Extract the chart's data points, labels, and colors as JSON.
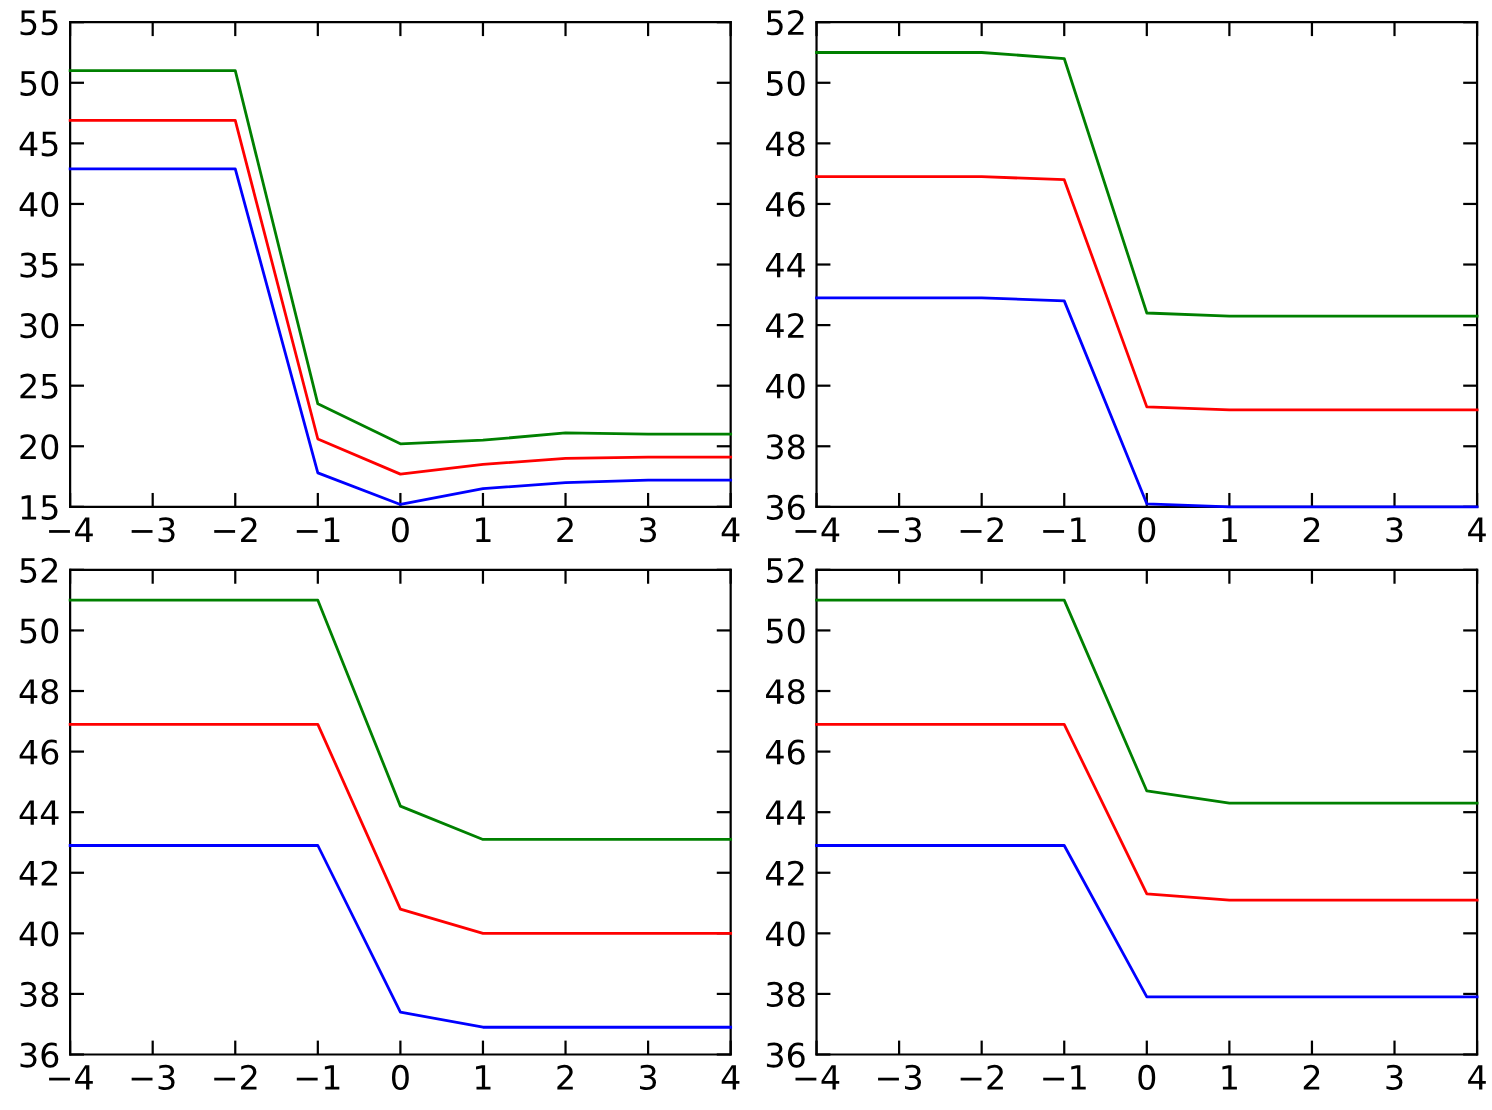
{
  "chart_data": [
    {
      "type": "line",
      "x": [
        -4,
        -2,
        -1,
        0,
        1,
        2,
        3,
        4
      ],
      "xlim": [
        -4,
        4
      ],
      "xticks": [
        -4,
        -3,
        -2,
        -1,
        0,
        1,
        2,
        3,
        4
      ],
      "ylim": [
        15,
        55
      ],
      "yticks": [
        15,
        20,
        25,
        30,
        35,
        40,
        45,
        50,
        55
      ],
      "grid": false,
      "series": [
        {
          "color": "#008000",
          "values": [
            51,
            51,
            23.5,
            20.2,
            20.5,
            21.1,
            21,
            21
          ]
        },
        {
          "color": "#ff0000",
          "values": [
            46.9,
            46.9,
            20.6,
            17.7,
            18.5,
            19,
            19.1,
            19.1
          ]
        },
        {
          "color": "#0000ff",
          "values": [
            42.9,
            42.9,
            17.8,
            15.2,
            16.5,
            17,
            17.2,
            17.2
          ]
        }
      ]
    },
    {
      "type": "line",
      "x": [
        -4,
        -2,
        -1,
        0,
        1,
        2,
        3,
        4
      ],
      "xlim": [
        -4,
        4
      ],
      "xticks": [
        -4,
        -3,
        -2,
        -1,
        0,
        1,
        2,
        3,
        4
      ],
      "ylim": [
        36,
        52
      ],
      "yticks": [
        36,
        38,
        40,
        42,
        44,
        46,
        48,
        50,
        52
      ],
      "grid": false,
      "series": [
        {
          "color": "#008000",
          "values": [
            51,
            51,
            50.8,
            42.4,
            42.3,
            42.3,
            42.3,
            42.3
          ]
        },
        {
          "color": "#ff0000",
          "values": [
            46.9,
            46.9,
            46.8,
            39.3,
            39.2,
            39.2,
            39.2,
            39.2
          ]
        },
        {
          "color": "#0000ff",
          "values": [
            42.9,
            42.9,
            42.8,
            36.1,
            36,
            36,
            36,
            36
          ]
        }
      ]
    },
    {
      "type": "line",
      "x": [
        -4,
        -2,
        -1,
        0,
        1,
        2,
        3,
        4
      ],
      "xlim": [
        -4,
        4
      ],
      "xticks": [
        -4,
        -3,
        -2,
        -1,
        0,
        1,
        2,
        3,
        4
      ],
      "ylim": [
        36,
        52
      ],
      "yticks": [
        36,
        38,
        40,
        42,
        44,
        46,
        48,
        50,
        52
      ],
      "grid": false,
      "series": [
        {
          "color": "#008000",
          "values": [
            51,
            51,
            51,
            44.2,
            43.1,
            43.1,
            43.1,
            43.1
          ]
        },
        {
          "color": "#ff0000",
          "values": [
            46.9,
            46.9,
            46.9,
            40.8,
            40,
            40,
            40,
            40
          ]
        },
        {
          "color": "#0000ff",
          "values": [
            42.9,
            42.9,
            42.9,
            37.4,
            36.9,
            36.9,
            36.9,
            36.9
          ]
        }
      ]
    },
    {
      "type": "line",
      "x": [
        -4,
        -2,
        -1,
        0,
        1,
        2,
        3,
        4
      ],
      "xlim": [
        -4,
        4
      ],
      "xticks": [
        -4,
        -3,
        -2,
        -1,
        0,
        1,
        2,
        3,
        4
      ],
      "ylim": [
        36,
        52
      ],
      "yticks": [
        36,
        38,
        40,
        42,
        44,
        46,
        48,
        50,
        52
      ],
      "grid": false,
      "series": [
        {
          "color": "#008000",
          "values": [
            51,
            51,
            51,
            44.7,
            44.3,
            44.3,
            44.3,
            44.3
          ]
        },
        {
          "color": "#ff0000",
          "values": [
            46.9,
            46.9,
            46.9,
            41.3,
            41.1,
            41.1,
            41.1,
            41.1
          ]
        },
        {
          "color": "#0000ff",
          "values": [
            42.9,
            42.9,
            42.9,
            37.9,
            37.9,
            37.9,
            37.9,
            37.9
          ]
        }
      ]
    }
  ]
}
